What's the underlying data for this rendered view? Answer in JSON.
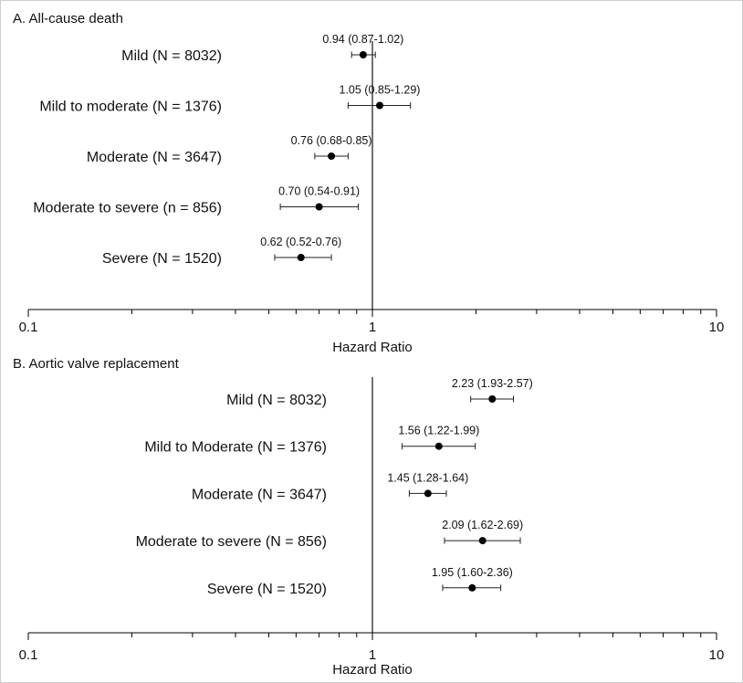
{
  "chart_data": [
    {
      "type": "forest",
      "title": "A. All-cause death",
      "xlabel": "Hazard Ratio",
      "xscale": "log",
      "xlim": [
        0.1,
        10
      ],
      "major_ticks": [
        0.1,
        1,
        10
      ],
      "tick_labels": [
        "0.1",
        "1",
        "10"
      ],
      "reference": 1,
      "rows": [
        {
          "label": "Mild (N = 8032)",
          "hr": 0.94,
          "lo": 0.87,
          "hi": 1.02,
          "text": "0.94 (0.87-1.02)"
        },
        {
          "label": "Mild to moderate (N = 1376)",
          "hr": 1.05,
          "lo": 0.85,
          "hi": 1.29,
          "text": "1.05 (0.85-1.29)"
        },
        {
          "label": "Moderate (N = 3647)",
          "hr": 0.76,
          "lo": 0.68,
          "hi": 0.85,
          "text": "0.76 (0.68-0.85)"
        },
        {
          "label": "Moderate to severe (n = 856)",
          "hr": 0.7,
          "lo": 0.54,
          "hi": 0.91,
          "text": "0.70 (0.54-0.91)"
        },
        {
          "label": "Severe (N = 1520)",
          "hr": 0.62,
          "lo": 0.52,
          "hi": 0.76,
          "text": "0.62 (0.52-0.76)"
        }
      ]
    },
    {
      "type": "forest",
      "title": "B. Aortic valve replacement",
      "xlabel": "Hazard Ratio",
      "xscale": "log",
      "xlim": [
        0.1,
        10
      ],
      "major_ticks": [
        0.1,
        1,
        10
      ],
      "tick_labels": [
        "0.1",
        "1",
        "10"
      ],
      "reference": 1,
      "rows": [
        {
          "label": "Mild (N = 8032)",
          "hr": 2.23,
          "lo": 1.93,
          "hi": 2.57,
          "text": "2.23 (1.93-2.57)"
        },
        {
          "label": "Mild to Moderate (N = 1376)",
          "hr": 1.56,
          "lo": 1.22,
          "hi": 1.99,
          "text": "1.56 (1.22-1.99)"
        },
        {
          "label": "Moderate (N = 3647)",
          "hr": 1.45,
          "lo": 1.28,
          "hi": 1.64,
          "text": "1.45 (1.28-1.64)"
        },
        {
          "label": "Moderate to severe (N = 856)",
          "hr": 2.09,
          "lo": 1.62,
          "hi": 2.69,
          "text": "2.09 (1.62-2.69)"
        },
        {
          "label": "Severe (N = 1520)",
          "hr": 1.95,
          "lo": 1.6,
          "hi": 2.36,
          "text": "1.95 (1.60-2.36)"
        }
      ]
    }
  ]
}
